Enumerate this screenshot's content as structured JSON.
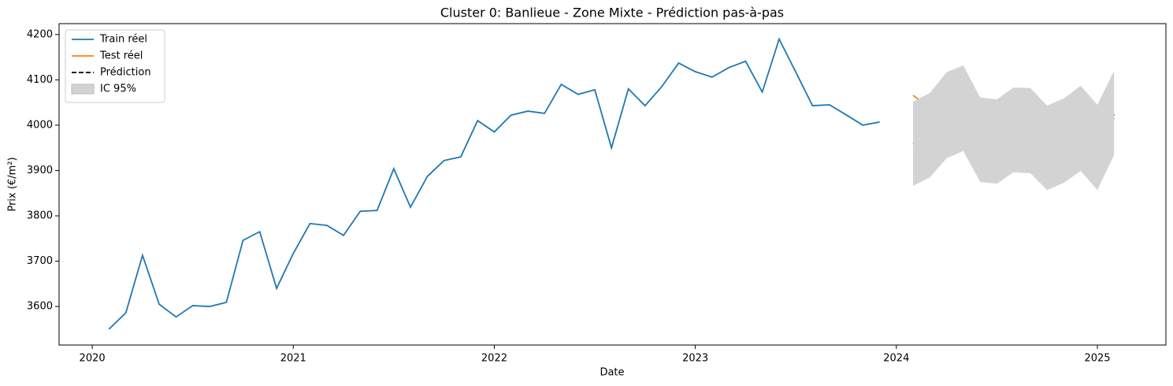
{
  "chart_data": {
    "type": "line",
    "title": "Cluster 0: Banlieue - Zone Mixte - Prédiction pas-à-pas",
    "x_label": "Date",
    "y_label": "Prix (€/m²)",
    "xlim": [
      2019.835,
      2025.341
    ],
    "ylim": [
      3515,
      4224
    ],
    "xticks": [
      2020,
      2021,
      2022,
      2023,
      2024,
      2025
    ],
    "yticks": [
      3600,
      3700,
      3800,
      3900,
      4000,
      4100,
      4200
    ],
    "legend": "upper left",
    "series": [
      {
        "name": "Train réel",
        "color": "#1f77b4",
        "x": [
          2020.083,
          2020.167,
          2020.25,
          2020.333,
          2020.417,
          2020.5,
          2020.583,
          2020.667,
          2020.75,
          2020.833,
          2020.917,
          2021.0,
          2021.083,
          2021.167,
          2021.25,
          2021.333,
          2021.417,
          2021.5,
          2021.583,
          2021.667,
          2021.75,
          2021.833,
          2021.917,
          2022.0,
          2022.083,
          2022.167,
          2022.25,
          2022.333,
          2022.417,
          2022.5,
          2022.583,
          2022.667,
          2022.75,
          2022.833,
          2022.917,
          2023.0,
          2023.083,
          2023.167,
          2023.25,
          2023.333,
          2023.417,
          2023.5,
          2023.583,
          2023.667,
          2023.75,
          2023.833,
          2023.917
        ],
        "values": [
          3550,
          3586,
          3713,
          3605,
          3577,
          3602,
          3600,
          3609,
          3746,
          3765,
          3640,
          3717,
          3783,
          3779,
          3757,
          3810,
          3812,
          3904,
          3819,
          3887,
          3922,
          3930,
          4010,
          3985,
          4022,
          4031,
          4026,
          4090,
          4068,
          4078,
          3950,
          4080,
          4043,
          4085,
          4137,
          4118,
          4106,
          4127,
          4141,
          4073,
          4190,
          4117,
          4043,
          4045,
          4023,
          4000,
          4007
        ]
      },
      {
        "name": "Test réel",
        "color": "#ff7f0e",
        "x": [
          2024.083,
          2024.167,
          2024.25,
          2024.333,
          2024.417,
          2024.5,
          2024.583,
          2024.667,
          2024.75,
          2024.833,
          2024.917,
          2025.0,
          2025.083
        ],
        "values": [
          4066,
          4038,
          4031,
          4019,
          3979,
          4007,
          3993,
          4023,
          4017,
          3965,
          4003,
          3941,
          4016
        ]
      },
      {
        "name": "Prédiction",
        "color": "#000000",
        "dashed": true,
        "x": [
          2024.083,
          2024.167,
          2024.25,
          2024.333,
          2024.417,
          2024.5,
          2024.583,
          2024.667,
          2024.75,
          2024.833,
          2024.917,
          2025.0,
          2025.083
        ],
        "values": [
          3958,
          3977,
          4021,
          4038,
          3969,
          3965,
          3990,
          3988,
          3950,
          3965,
          3995,
          3953,
          4024
        ]
      },
      {
        "name": "IC 95%",
        "color": "#d3d3d3",
        "band": true,
        "x": [
          2024.083,
          2024.167,
          2024.25,
          2024.333,
          2024.417,
          2024.5,
          2024.583,
          2024.667,
          2024.75,
          2024.833,
          2024.917,
          2025.0,
          2025.083
        ],
        "upper": [
          4052,
          4071,
          4117,
          4132,
          4061,
          4057,
          4083,
          4082,
          4043,
          4059,
          4087,
          4045,
          4120
        ],
        "lower": [
          3866,
          3885,
          3927,
          3943,
          3875,
          3871,
          3896,
          3894,
          3857,
          3873,
          3899,
          3857,
          3934
        ]
      }
    ]
  }
}
